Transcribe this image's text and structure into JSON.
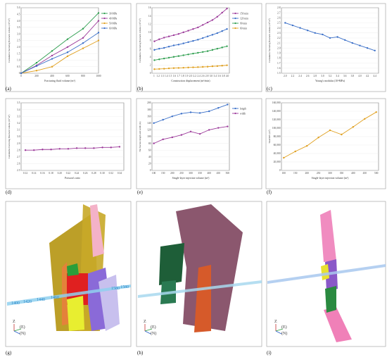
{
  "captions": [
    "(a)",
    "(b)",
    "(c)",
    "(d)",
    "(e)",
    "(f)",
    "(g)",
    "(h)",
    "(i)"
  ],
  "chart_data": [
    {
      "id": "a",
      "type": "line",
      "xlabel": "Fracturing fluid volume (m³)",
      "ylabel": "Cumulative fracturing flowback volume (10³ m³)",
      "x": [
        0,
        200,
        400,
        600,
        800,
        1000
      ],
      "xlim": [
        0,
        1000
      ],
      "ylim": [
        0,
        5
      ],
      "xticks": [
        0,
        200,
        400,
        600,
        800,
        1000
      ],
      "yticks": [
        0,
        0.5,
        1.0,
        1.5,
        2.0,
        2.5,
        3.0,
        3.5,
        4.0,
        4.5,
        5.0
      ],
      "xtick_labels": [
        "0",
        "200",
        "400",
        "600",
        "800",
        "1000"
      ],
      "ytick_labels": [
        "0",
        "0.5",
        "1.0",
        "1.5",
        "2.0",
        "2.5",
        "3.0",
        "3.5",
        "4.0",
        "4.5",
        "5.0"
      ],
      "legend_position": "right",
      "series": [
        {
          "name": "30 MPa",
          "color": "#2e9e4f",
          "values": [
            0,
            0.8,
            1.7,
            2.6,
            3.4,
            4.6
          ]
        },
        {
          "name": "40 MPa",
          "color": "#9c3a9a",
          "values": [
            0,
            0.6,
            1.35,
            2.0,
            2.7,
            4.0
          ]
        },
        {
          "name": "50 MPa",
          "color": "#e0a020",
          "values": [
            0,
            0.2,
            0.5,
            1.3,
            1.9,
            2.5
          ]
        },
        {
          "name": "60 MPa",
          "color": "#3a6fc8",
          "values": [
            0,
            0.55,
            1.1,
            1.6,
            2.3,
            3.1
          ]
        }
      ]
    },
    {
      "id": "b",
      "type": "line",
      "xlabel": "Construction displacement (m³/min)",
      "ylabel": "Cumulative fracturing flowback volume (10³ m³)",
      "x": [
        1.0,
        1.2,
        1.4,
        1.6,
        1.8,
        2.0,
        2.2,
        2.4,
        2.6,
        2.8,
        3.0,
        3.2,
        3.4,
        3.6,
        3.8,
        4.0
      ],
      "xlim": [
        0.9,
        4.1
      ],
      "ylim": [
        0,
        16
      ],
      "xtick_labels": [
        "1",
        "1.2",
        "1.3",
        "1.4",
        "1.5",
        "1.6",
        "1.7",
        "1.8",
        "1.9",
        "2.0",
        "2.2",
        "2.4",
        "2.6",
        "2.8",
        "3.0",
        "3.4",
        "3.6",
        "3.8",
        "4.0"
      ],
      "ytick_labels": [
        "0",
        "2",
        "4",
        "6",
        "8",
        "10",
        "12",
        "14",
        "16"
      ],
      "legend_position": "right",
      "series": [
        {
          "name": "150 min",
          "color": "#9c3a9a",
          "values": [
            7.8,
            8.3,
            8.7,
            9.0,
            9.3,
            9.6,
            10.0,
            10.4,
            10.8,
            11.2,
            11.8,
            12.4,
            13.0,
            13.8,
            14.8,
            15.8
          ]
        },
        {
          "name": "120 min",
          "color": "#3a6fc8",
          "values": [
            5.7,
            6.0,
            6.2,
            6.5,
            6.8,
            7.0,
            7.3,
            7.6,
            7.9,
            8.2,
            8.6,
            9.0,
            9.4,
            9.8,
            10.3,
            10.8
          ]
        },
        {
          "name": "90 min",
          "color": "#2e9e4f",
          "values": [
            3.2,
            3.4,
            3.6,
            3.8,
            4.0,
            4.2,
            4.4,
            4.6,
            4.8,
            5.0,
            5.2,
            5.4,
            5.7,
            6.0,
            6.3,
            6.6
          ]
        },
        {
          "name": "60 min",
          "color": "#e0a020",
          "values": [
            1.0,
            1.05,
            1.1,
            1.2,
            1.25,
            1.3,
            1.35,
            1.4,
            1.45,
            1.5,
            1.55,
            1.6,
            1.7,
            1.75,
            1.85,
            1.95
          ]
        }
      ]
    },
    {
      "id": "c",
      "type": "line",
      "xlabel": "Young's modulus (10⁴MPa)",
      "ylabel": "Cumulative fracturing flowback volume (10³ m³)",
      "x": [
        2.0,
        2.2,
        2.4,
        2.6,
        2.8,
        3.0,
        3.2,
        3.4,
        3.6,
        3.8,
        4.0,
        4.2,
        4.4
      ],
      "xlim": [
        1.9,
        4.5
      ],
      "ylim": [
        1.5,
        2.8
      ],
      "xticks": [
        2.0,
        2.2,
        2.4,
        2.6,
        2.8,
        3.0,
        3.2,
        3.4,
        3.6,
        3.8,
        4.0,
        4.2,
        4.4
      ],
      "yticks": [
        1.5,
        1.6,
        1.7,
        1.8,
        1.9,
        2.0,
        2.1,
        2.2,
        2.3,
        2.4,
        2.5,
        2.6,
        2.7,
        2.8
      ],
      "xtick_labels": [
        "2.0",
        "2.2",
        "2.4",
        "2.6",
        "2.8",
        "3.0",
        "3.2",
        "3.4",
        "3.6",
        "3.8",
        "4.0",
        "4.2",
        "4.4"
      ],
      "ytick_labels": [
        "1.5",
        "1.6",
        "1.7",
        "1.8",
        "1.9",
        "2.0",
        "2.1",
        "2.2",
        "2.3",
        "2.4",
        "2.5",
        "2.6",
        "2.7",
        "2.8"
      ],
      "series": [
        {
          "name": "",
          "color": "#3a6fc8",
          "values": [
            2.5,
            2.45,
            2.4,
            2.35,
            2.3,
            2.27,
            2.2,
            2.22,
            2.16,
            2.1,
            2.05,
            2.0,
            1.95
          ]
        }
      ]
    },
    {
      "id": "d",
      "type": "line",
      "xlabel": "Poisson's ratio",
      "ylabel": "Cumulative fracturing flowback volume (10³ m³)",
      "x": [
        0.12,
        0.14,
        0.16,
        0.18,
        0.2,
        0.22,
        0.24,
        0.26,
        0.28,
        0.3,
        0.32,
        0.34
      ],
      "xlim": [
        0.11,
        0.35
      ],
      "ylim": [
        2.5,
        3.5
      ],
      "xticks": [
        0.12,
        0.14,
        0.16,
        0.18,
        0.2,
        0.22,
        0.24,
        0.26,
        0.28,
        0.3,
        0.32,
        0.34
      ],
      "yticks": [
        2.5,
        2.6,
        2.7,
        2.8,
        2.9,
        3.0,
        3.1,
        3.2,
        3.3,
        3.4,
        3.5
      ],
      "xtick_labels": [
        "0.12",
        "0.14",
        "0.16",
        "0.18",
        "0.20",
        "0.22",
        "0.24",
        "0.26",
        "0.28",
        "0.30",
        "0.32",
        "0.34"
      ],
      "ytick_labels": [
        "2.5",
        "2.6",
        "2.7",
        "2.8",
        "2.9",
        "3.0",
        "3.1",
        "3.2",
        "3.3",
        "3.4",
        "3.5"
      ],
      "series": [
        {
          "name": "",
          "color": "#9c3a9a",
          "values": [
            2.8,
            2.8,
            2.81,
            2.81,
            2.82,
            2.82,
            2.83,
            2.83,
            2.83,
            2.84,
            2.84,
            2.85
          ]
        }
      ]
    },
    {
      "id": "e",
      "type": "line",
      "xlabel": "Single-layer injection volume (m³)",
      "ylabel": "Net fracture length and width (m)",
      "x": [
        100,
        150,
        200,
        250,
        300,
        350,
        400,
        450,
        500
      ],
      "xlim": [
        90,
        510
      ],
      "ylim": [
        0,
        200
      ],
      "xticks": [
        100,
        150,
        200,
        250,
        300,
        350,
        400,
        450,
        500
      ],
      "yticks": [
        0,
        20,
        40,
        60,
        80,
        100,
        120,
        140,
        160,
        180,
        200
      ],
      "xtick_labels": [
        "100",
        "150",
        "200",
        "250",
        "300",
        "350",
        "400",
        "450",
        "500"
      ],
      "ytick_labels": [
        "0",
        "20",
        "40",
        "60",
        "80",
        "100",
        "120",
        "140",
        "160",
        "180",
        "200"
      ],
      "legend_position": "right",
      "series": [
        {
          "name": "length",
          "color": "#3a6fc8",
          "values": [
            140,
            150,
            160,
            168,
            172,
            170,
            175,
            185,
            195
          ]
        },
        {
          "name": "width",
          "color": "#9c3a9a",
          "values": [
            80,
            92,
            98,
            105,
            115,
            108,
            120,
            126,
            130
          ]
        }
      ]
    },
    {
      "id": "f",
      "type": "line",
      "xlabel": "Single-layer injection volume (m³)",
      "ylabel": "Total SRV (m³)",
      "x": [
        100,
        150,
        200,
        250,
        300,
        350,
        400,
        450,
        500
      ],
      "xlim": [
        90,
        510
      ],
      "ylim": [
        0,
        160000
      ],
      "xticks": [
        100,
        150,
        200,
        250,
        300,
        350,
        400,
        450,
        500
      ],
      "yticks": [
        0,
        20000,
        40000,
        60000,
        80000,
        100000,
        120000,
        140000,
        160000
      ],
      "xtick_labels": [
        "100",
        "150",
        "200",
        "250",
        "300",
        "350",
        "400",
        "450",
        "500"
      ],
      "ytick_labels": [
        "0",
        "20,000",
        "40,000",
        "60,000",
        "80,000",
        "100,000",
        "120,000",
        "140,000",
        "160,000"
      ],
      "series": [
        {
          "name": "",
          "color": "#e0a020",
          "values": [
            30000,
            45000,
            58000,
            78000,
            95000,
            85000,
            103000,
            122000,
            138000
          ]
        }
      ]
    }
  ],
  "models": {
    "depth_labels": [
      "1400",
      "1420",
      "1440",
      "1460",
      "1580",
      "1580"
    ],
    "axis_labels": {
      "up": "Z",
      "east": "(E)",
      "north": "(N)"
    }
  }
}
